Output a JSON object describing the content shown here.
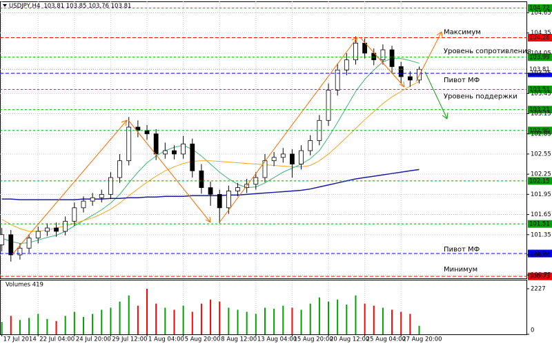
{
  "chart_data": {
    "type": "candlestick",
    "title": "USDJPY,H4",
    "ohlc_label": "103.81 103.85 103.76 103.81",
    "up_color": "#ffffff",
    "down_color": "#000000",
    "xlim": [
      -0.2,
      57.9
    ],
    "ylim": [
      100.69,
      104.82
    ],
    "xticks": [
      {
        "value": 0,
        "label": "17 Jul 2014"
      },
      {
        "value": 4,
        "label": "22 Jul 04:00"
      },
      {
        "value": 8,
        "label": "24 Jul 20:00"
      },
      {
        "value": 12,
        "label": "29 Jul 12:00"
      },
      {
        "value": 16,
        "label": "1 Aug 04:00"
      },
      {
        "value": 20,
        "label": "5 Aug 20:00"
      },
      {
        "value": 24,
        "label": "8 Aug 12:00"
      },
      {
        "value": 28,
        "label": "13 Aug 04:00"
      },
      {
        "value": 32,
        "label": "15 Aug 20:00"
      },
      {
        "value": 36,
        "label": "20 Aug 12:00"
      },
      {
        "value": 40,
        "label": "25 Aug 04:00"
      },
      {
        "value": 44,
        "label": "27 Aug 20:00"
      }
    ],
    "yticks": [
      104.65,
      104.35,
      104.05,
      103.75,
      103.45,
      103.15,
      102.85,
      102.55,
      102.25,
      101.95,
      101.65,
      101.35,
      101.05,
      100.75
    ],
    "grid": true,
    "open": [
      101.2,
      101.35,
      101.05,
      101.15,
      101.3,
      101.4,
      101.45,
      101.4,
      101.55,
      101.75,
      101.85,
      101.9,
      101.95,
      102.2,
      102.45,
      102.95,
      102.9,
      102.85,
      102.55,
      102.6,
      102.55,
      102.7,
      102.3,
      102.05,
      101.95,
      101.75,
      102.0,
      102.05,
      102.1,
      102.2,
      102.45,
      102.5,
      102.55,
      102.4,
      102.6,
      102.75,
      103.05,
      103.5,
      103.8,
      103.95,
      104.2,
      104.05,
      103.95,
      104.1,
      103.85,
      103.7,
      103.65
    ],
    "high": [
      101.45,
      101.42,
      101.22,
      101.36,
      101.47,
      101.52,
      101.53,
      101.62,
      101.83,
      101.92,
      101.97,
      102.02,
      102.28,
      102.55,
      103.1,
      103.05,
      102.98,
      102.92,
      102.72,
      102.68,
      102.82,
      102.78,
      102.4,
      102.14,
      102.02,
      102.08,
      102.12,
      102.18,
      102.28,
      102.55,
      102.58,
      102.64,
      102.62,
      102.68,
      102.83,
      103.13,
      103.6,
      103.9,
      104.05,
      104.3,
      104.27,
      104.12,
      104.18,
      104.16,
      103.92,
      103.78,
      103.85
    ],
    "low": [
      101.1,
      100.95,
      100.98,
      101.08,
      101.22,
      101.33,
      101.32,
      101.34,
      101.48,
      101.68,
      101.78,
      101.83,
      101.88,
      102.12,
      102.38,
      102.8,
      102.76,
      102.46,
      102.48,
      102.47,
      102.48,
      102.2,
      101.96,
      101.78,
      101.52,
      101.66,
      101.92,
      101.97,
      102.02,
      102.13,
      102.37,
      102.42,
      102.2,
      102.32,
      102.53,
      102.68,
      102.97,
      103.42,
      103.72,
      103.88,
      103.97,
      103.87,
      103.88,
      103.76,
      103.6,
      103.55,
      103.6
    ],
    "close": [
      101.35,
      101.05,
      101.15,
      101.3,
      101.4,
      101.45,
      101.4,
      101.55,
      101.75,
      101.85,
      101.9,
      101.95,
      102.2,
      102.45,
      102.95,
      102.9,
      102.85,
      102.55,
      102.6,
      102.55,
      102.7,
      102.3,
      102.05,
      101.95,
      101.75,
      102.0,
      102.05,
      102.1,
      102.2,
      102.45,
      102.5,
      102.55,
      102.4,
      102.6,
      102.75,
      103.05,
      103.5,
      103.8,
      103.95,
      104.2,
      104.05,
      103.95,
      104.1,
      103.85,
      103.7,
      103.65,
      103.81
    ],
    "moving_averages": [
      {
        "color": "#3cb371",
        "values": [
          101.3,
          101.25,
          101.22,
          101.23,
          101.27,
          101.31,
          101.34,
          101.4,
          101.48,
          101.56,
          101.64,
          101.72,
          101.82,
          101.95,
          102.12,
          102.28,
          102.42,
          102.52,
          102.6,
          102.65,
          102.68,
          102.62,
          102.52,
          102.4,
          102.28,
          102.18,
          102.1,
          102.05,
          102.06,
          102.12,
          102.2,
          102.28,
          102.34,
          102.4,
          102.48,
          102.6,
          102.8,
          103.02,
          103.25,
          103.48,
          103.66,
          103.8,
          103.92,
          103.97,
          103.97,
          103.94,
          103.9
        ]
      },
      {
        "color": "#f5a623",
        "values": [
          101.58,
          101.5,
          101.44,
          101.4,
          101.4,
          101.42,
          101.45,
          101.48,
          101.52,
          101.56,
          101.6,
          101.66,
          101.73,
          101.82,
          101.93,
          102.03,
          102.13,
          102.22,
          102.3,
          102.36,
          102.41,
          102.44,
          102.45,
          102.45,
          102.44,
          102.43,
          102.42,
          102.41,
          102.4,
          102.39,
          102.38,
          102.37,
          102.36,
          102.36,
          102.38,
          102.45,
          102.55,
          102.67,
          102.8,
          102.93,
          103.06,
          103.18,
          103.3,
          103.4,
          103.48,
          103.56,
          103.63
        ]
      },
      {
        "color": "#1a1a9c",
        "values": [
          101.88,
          101.88,
          101.87,
          101.87,
          101.87,
          101.87,
          101.87,
          101.87,
          101.87,
          101.88,
          101.88,
          101.88,
          101.89,
          101.89,
          101.9,
          101.9,
          101.91,
          101.91,
          101.92,
          101.92,
          101.92,
          101.93,
          101.93,
          101.93,
          101.93,
          101.94,
          101.94,
          101.95,
          101.96,
          101.97,
          101.98,
          101.99,
          102.0,
          102.01,
          102.03,
          102.06,
          102.09,
          102.12,
          102.15,
          102.18,
          102.2,
          102.22,
          102.24,
          102.26,
          102.28,
          102.3,
          102.32
        ]
      }
    ],
    "last_price": 103.81,
    "levels": [
      {
        "value": 104.72,
        "color": "#00a000"
      },
      {
        "value": 104.28,
        "color": "#ff0000",
        "annotation": "Максимум"
      },
      {
        "value": 103.99,
        "color": "#00a000",
        "annotation": "Уровень сопротивления"
      },
      {
        "value": 103.75,
        "color": "#0000ff",
        "annotation": "Пивот МФ"
      },
      {
        "value": 103.51,
        "color": "#00a000",
        "annotation": "Уровень поддержки"
      },
      {
        "value": 103.21,
        "color": "#00a000"
      },
      {
        "value": 102.9,
        "label": "102.90",
        "color": "#00a000"
      },
      {
        "value": 102.15,
        "color": "#00a000"
      },
      {
        "value": 101.51,
        "color": "#00a000"
      },
      {
        "value": 101.07,
        "color": "#0000ff",
        "annotation": "Пивот МФ"
      },
      {
        "value": 100.73,
        "color": "#ff0000",
        "annotation": "Минимум"
      }
    ],
    "volume": {
      "title": "Volumes 419",
      "ylim": [
        0,
        2227
      ],
      "yticks": [
        2227,
        0
      ],
      "up_color": "#00a000",
      "down_color": "#ff0000",
      "values": [
        600,
        900,
        700,
        800,
        1000,
        750,
        650,
        900,
        1100,
        850,
        1000,
        1200,
        1300,
        1600,
        1900,
        1400,
        2227,
        1500,
        1300,
        1200,
        1400,
        1100,
        1500,
        1700,
        1600,
        1300,
        1200,
        1100,
        1000,
        1300,
        1250,
        1400,
        1300,
        1200,
        1500,
        1800,
        1600,
        1700,
        1450,
        1900,
        1500,
        1400,
        1300,
        1200,
        1100,
        1000,
        419
      ]
    }
  }
}
